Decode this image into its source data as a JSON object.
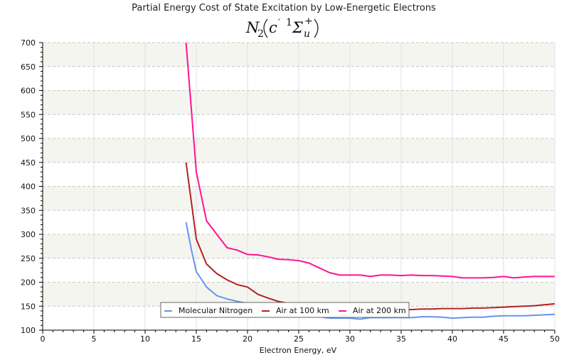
{
  "chart_data": {
    "type": "line",
    "title": "Partial Energy Cost of State Excitation by Low-Energetic Electrons",
    "subtitle": {
      "base": "N",
      "base_sub": "2",
      "state_letter": "c",
      "prime": "′",
      "multiplicity": "1",
      "term": "Σ",
      "term_sub": "u",
      "term_sup": "+"
    },
    "xlabel": "Electron Energy, eV",
    "ylabel": "",
    "xlim": [
      0,
      50
    ],
    "ylim": [
      100,
      700
    ],
    "x_ticks": [
      0,
      5,
      10,
      15,
      20,
      25,
      30,
      35,
      40,
      45,
      50
    ],
    "y_ticks": [
      100,
      150,
      200,
      250,
      300,
      350,
      400,
      450,
      500,
      550,
      600,
      650,
      700
    ],
    "grid": true,
    "legend_position": "bottom-center",
    "series": [
      {
        "name": "Molecular Nitrogen",
        "color": "#6495ED",
        "x": [
          14,
          14.5,
          15,
          16,
          17,
          18,
          19,
          20,
          21,
          22,
          23,
          24,
          25,
          26,
          27,
          28,
          29,
          30,
          31,
          32,
          33,
          34,
          35,
          36,
          37,
          38,
          39,
          40,
          41,
          42,
          43,
          44,
          45,
          46,
          47,
          48,
          49,
          50
        ],
        "y": [
          325,
          270,
          222,
          190,
          172,
          165,
          160,
          156,
          152,
          148,
          145,
          143,
          140,
          134,
          128,
          125,
          125,
          125,
          123,
          126,
          126,
          126,
          126,
          126,
          128,
          128,
          127,
          125,
          126,
          127,
          127,
          129,
          130,
          130,
          130,
          131,
          132,
          133
        ]
      },
      {
        "name": "Air at 100 km",
        "color": "#B22222",
        "x": [
          14,
          14.5,
          15,
          16,
          17,
          18,
          19,
          20,
          21,
          22,
          23,
          24,
          25,
          26,
          27,
          28,
          29,
          30,
          31,
          32,
          33,
          34,
          35,
          36,
          37,
          38,
          39,
          40,
          41,
          42,
          43,
          44,
          45,
          46,
          47,
          48,
          49,
          50
        ],
        "y": [
          450,
          370,
          290,
          238,
          218,
          205,
          195,
          190,
          175,
          167,
          160,
          156,
          153,
          150,
          148,
          147,
          146,
          145,
          144,
          144,
          143,
          143,
          143,
          143,
          144,
          144,
          145,
          145,
          145,
          146,
          146,
          147,
          148,
          149,
          150,
          151,
          153,
          155
        ]
      },
      {
        "name": "Air at 200 km",
        "color": "#FF1493",
        "x": [
          14,
          15,
          16,
          17,
          18,
          19,
          20,
          21,
          22,
          23,
          24,
          25,
          26,
          27,
          28,
          29,
          30,
          31,
          32,
          33,
          34,
          35,
          36,
          37,
          38,
          39,
          40,
          41,
          42,
          43,
          44,
          45,
          46,
          47,
          48,
          49,
          50
        ],
        "y": [
          700,
          430,
          328,
          300,
          272,
          267,
          258,
          257,
          253,
          248,
          247,
          245,
          240,
          230,
          220,
          215,
          215,
          215,
          212,
          215,
          215,
          214,
          215,
          214,
          214,
          213,
          212,
          209,
          209,
          209,
          210,
          212,
          209,
          211,
          212,
          212,
          212
        ]
      }
    ]
  }
}
